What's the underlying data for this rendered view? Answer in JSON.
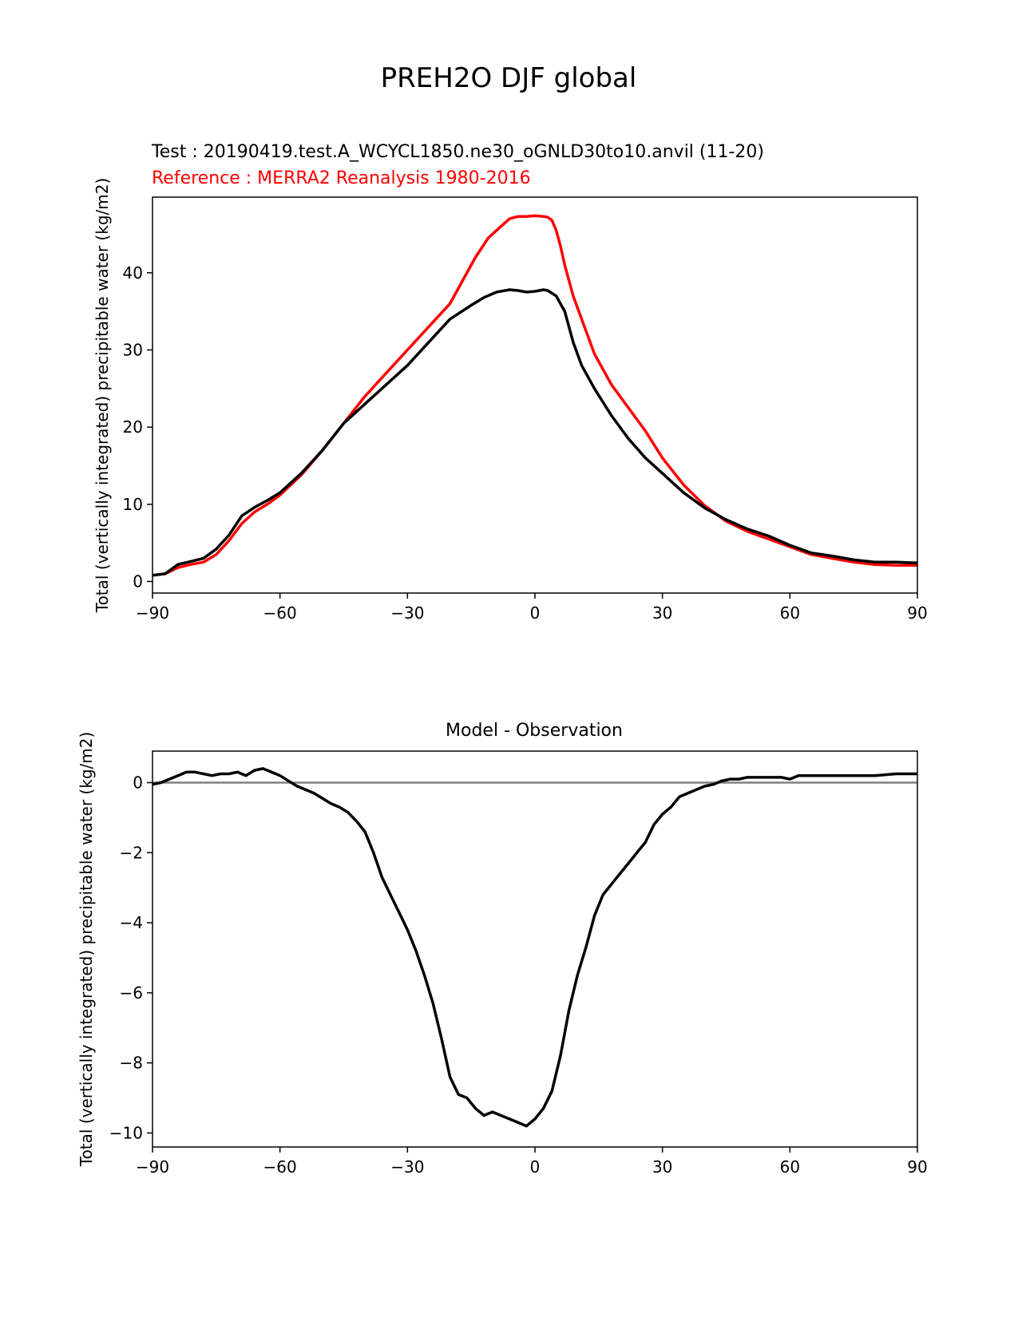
{
  "figure_title": "PREH2O DJF global",
  "colors": {
    "test": "#000000",
    "reference": "#ff0000",
    "zero_line": "#808080"
  },
  "chart_data": [
    {
      "type": "line",
      "subtitle_test": "Test : 20190419.test.A_WCYCL1850.ne30_oGNLD30to10.anvil (11-20)",
      "subtitle_reference": "Reference : MERRA2 Reanalysis 1980-2016",
      "xlabel": "",
      "ylabel": "Total (vertically integrated) precipitable water (kg/m2)",
      "xlim": [
        -90,
        90
      ],
      "ylim": [
        -1.5,
        49.8
      ],
      "xticks": [
        -90,
        -60,
        -30,
        0,
        30,
        60,
        90
      ],
      "xtick_labels": [
        "−90",
        "−60",
        "−30",
        "0",
        "30",
        "60",
        "90"
      ],
      "yticks": [
        0,
        10,
        20,
        30,
        40
      ],
      "ytick_labels": [
        "0",
        "10",
        "20",
        "30",
        "40"
      ],
      "grid": false,
      "series": [
        {
          "name": "Test",
          "x": [
            -90,
            -87,
            -84,
            -81,
            -78,
            -75,
            -72,
            -69,
            -66,
            -63,
            -60,
            -55,
            -50,
            -45,
            -40,
            -35,
            -30,
            -25,
            -20,
            -15,
            -12,
            -9,
            -6,
            -4,
            -2,
            0,
            2,
            3,
            5,
            7,
            9,
            11,
            14,
            18,
            22,
            26,
            30,
            35,
            40,
            45,
            50,
            55,
            60,
            65,
            70,
            75,
            80,
            85,
            90
          ],
          "values": [
            0.8,
            1.0,
            2.2,
            2.6,
            3.0,
            4.2,
            6.0,
            8.5,
            9.6,
            10.5,
            11.5,
            14.0,
            17.0,
            20.5,
            23.0,
            25.5,
            28.0,
            31.0,
            34.0,
            35.8,
            36.8,
            37.5,
            37.8,
            37.7,
            37.5,
            37.6,
            37.8,
            37.7,
            37.0,
            35.0,
            31.0,
            28.0,
            25.0,
            21.5,
            18.5,
            16.0,
            14.0,
            11.5,
            9.5,
            8.0,
            6.8,
            5.9,
            4.7,
            3.7,
            3.3,
            2.8,
            2.5,
            2.5,
            2.4
          ]
        },
        {
          "name": "Reference",
          "x": [
            -90,
            -87,
            -84,
            -81,
            -78,
            -75,
            -72,
            -69,
            -66,
            -63,
            -60,
            -55,
            -50,
            -45,
            -40,
            -35,
            -30,
            -25,
            -20,
            -17,
            -14,
            -11,
            -8,
            -6,
            -4,
            -2,
            0,
            2,
            3,
            4,
            5,
            6,
            7,
            9,
            11,
            14,
            18,
            22,
            26,
            30,
            35,
            40,
            45,
            50,
            55,
            60,
            65,
            70,
            75,
            80,
            85,
            90
          ],
          "values": [
            0.8,
            1.0,
            1.8,
            2.2,
            2.5,
            3.5,
            5.3,
            7.5,
            9.0,
            10.0,
            11.2,
            13.8,
            17.0,
            20.5,
            24.0,
            27.0,
            30.0,
            33.0,
            36.0,
            39.0,
            42.0,
            44.5,
            46.0,
            47.0,
            47.3,
            47.3,
            47.4,
            47.3,
            47.2,
            46.8,
            45.5,
            43.5,
            41.0,
            37.0,
            34.0,
            29.5,
            25.5,
            22.5,
            19.5,
            16.0,
            12.5,
            9.8,
            7.8,
            6.5,
            5.5,
            4.5,
            3.5,
            3.0,
            2.5,
            2.2,
            2.1,
            2.1
          ]
        }
      ]
    },
    {
      "type": "line",
      "title": "Model - Observation",
      "xlabel": "",
      "ylabel": "Total (vertically integrated) precipitable water (kg/m2)",
      "xlim": [
        -90,
        90
      ],
      "ylim": [
        -10.4,
        0.9
      ],
      "xticks": [
        -90,
        -60,
        -30,
        0,
        30,
        60,
        90
      ],
      "xtick_labels": [
        "−90",
        "−60",
        "−30",
        "0",
        "30",
        "60",
        "90"
      ],
      "yticks": [
        0,
        -2,
        -4,
        -6,
        -8,
        -10
      ],
      "ytick_labels": [
        "0",
        "−2",
        "−4",
        "−6",
        "−8",
        "−10"
      ],
      "grid": false,
      "zero_line": 0,
      "series": [
        {
          "name": "Model - Observation",
          "x": [
            -90,
            -88,
            -86,
            -84,
            -82,
            -80,
            -78,
            -76,
            -74,
            -72,
            -70,
            -68,
            -66,
            -64,
            -62,
            -60,
            -58,
            -56,
            -54,
            -52,
            -50,
            -48,
            -46,
            -44,
            -42,
            -40,
            -38,
            -36,
            -34,
            -32,
            -30,
            -28,
            -26,
            -24,
            -22,
            -20,
            -18,
            -16,
            -14,
            -12,
            -10,
            -8,
            -6,
            -4,
            -2,
            0,
            2,
            4,
            6,
            8,
            10,
            12,
            14,
            16,
            18,
            20,
            22,
            24,
            26,
            28,
            30,
            32,
            34,
            36,
            38,
            40,
            42,
            44,
            46,
            48,
            50,
            52,
            55,
            58,
            60,
            62,
            65,
            70,
            75,
            80,
            85,
            90
          ],
          "values": [
            -0.05,
            0.0,
            0.1,
            0.2,
            0.3,
            0.3,
            0.25,
            0.2,
            0.25,
            0.25,
            0.3,
            0.2,
            0.35,
            0.4,
            0.3,
            0.2,
            0.05,
            -0.1,
            -0.2,
            -0.3,
            -0.45,
            -0.6,
            -0.7,
            -0.85,
            -1.1,
            -1.4,
            -2.0,
            -2.7,
            -3.2,
            -3.7,
            -4.2,
            -4.8,
            -5.5,
            -6.3,
            -7.3,
            -8.4,
            -8.9,
            -9.0,
            -9.3,
            -9.5,
            -9.4,
            -9.5,
            -9.6,
            -9.7,
            -9.8,
            -9.6,
            -9.3,
            -8.8,
            -7.8,
            -6.5,
            -5.5,
            -4.7,
            -3.8,
            -3.2,
            -2.9,
            -2.6,
            -2.3,
            -2.0,
            -1.7,
            -1.2,
            -0.9,
            -0.7,
            -0.4,
            -0.3,
            -0.2,
            -0.1,
            -0.05,
            0.05,
            0.1,
            0.1,
            0.15,
            0.15,
            0.15,
            0.15,
            0.1,
            0.2,
            0.2,
            0.2,
            0.2,
            0.2,
            0.25,
            0.25
          ]
        }
      ]
    }
  ]
}
